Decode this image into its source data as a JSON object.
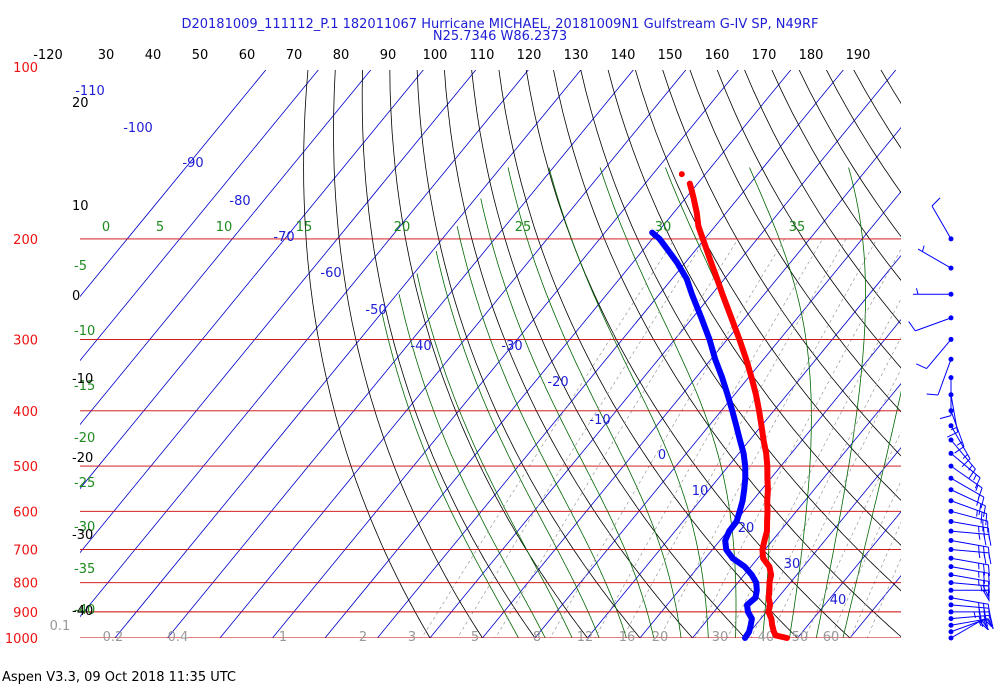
{
  "header": {
    "title": "D20181009_111112_P.1 182011067 Hurricane MICHAEL, 20181009N1 Gulfstream G-IV SP, N49RF",
    "subtitle": "N25.7346 W86.2373"
  },
  "footer": {
    "text": "Aspen V3.3, 09 Oct 2018  11:35 UTC"
  },
  "chart_data": {
    "type": "line",
    "chart_kind": "skew-T log-P sounding",
    "pressure_axis": {
      "scale": "log",
      "range_hPa": [
        100,
        1000
      ],
      "labels": [
        "100",
        "200",
        "300",
        "400",
        "500",
        "600",
        "700",
        "800",
        "900",
        "1000"
      ],
      "color": "#e00000"
    },
    "top_axis": {
      "labels": [
        "-120",
        "30",
        "40",
        "50",
        "60",
        "70",
        "80",
        "90",
        "100",
        "110",
        "120",
        "130",
        "140",
        "150",
        "160",
        "170",
        "180",
        "190"
      ]
    },
    "isotherm_labels": [
      {
        "label": "-110",
        "t": -110
      },
      {
        "label": "-100",
        "t": -100
      },
      {
        "label": "-90",
        "t": -90
      },
      {
        "label": "-80",
        "t": -80
      },
      {
        "label": "-70",
        "t": -70
      },
      {
        "label": "-60",
        "t": -60
      },
      {
        "label": "-50",
        "t": -50
      },
      {
        "label": "-40",
        "t": -40
      },
      {
        "label": "-30",
        "t": -30
      },
      {
        "label": "-20",
        "t": -20
      },
      {
        "label": "-10",
        "t": -10
      },
      {
        "label": "0",
        "t": 0
      },
      {
        "label": "10",
        "t": 10
      },
      {
        "label": "20",
        "t": 20
      },
      {
        "label": "30",
        "t": 30
      },
      {
        "label": "40",
        "t": 40
      }
    ],
    "theta_e_labels": [
      "0",
      "5",
      "10",
      "15",
      "20",
      "25",
      "30",
      "35"
    ],
    "left_green_labels": [
      "-5",
      "-10",
      "-15",
      "-20",
      "-25",
      "-30",
      "-35",
      "-40"
    ],
    "left_black_labels": [
      "20",
      "10",
      "0",
      "-10",
      "-20",
      "-30",
      "-40"
    ],
    "mixing_ratio_labels": [
      "0.1",
      "0.2",
      "0.4",
      "1",
      "2",
      "3",
      "5",
      "8",
      "12",
      "16",
      "20",
      "30",
      "40",
      "50",
      "60"
    ],
    "series": [
      {
        "name": "temperature",
        "color": "#ff0000",
        "points": [
          {
            "p": 1000,
            "t": 28.0
          },
          {
            "p": 990,
            "t": 25.5
          },
          {
            "p": 975,
            "t": 24.5
          },
          {
            "p": 950,
            "t": 23.2
          },
          {
            "p": 925,
            "t": 22.0
          },
          {
            "p": 900,
            "t": 20.4
          },
          {
            "p": 875,
            "t": 19.6
          },
          {
            "p": 850,
            "t": 18.2
          },
          {
            "p": 825,
            "t": 17.2
          },
          {
            "p": 800,
            "t": 16.0
          },
          {
            "p": 775,
            "t": 15.1
          },
          {
            "p": 750,
            "t": 13.5
          },
          {
            "p": 725,
            "t": 11.0
          },
          {
            "p": 700,
            "t": 9.5
          },
          {
            "p": 675,
            "t": 8.5
          },
          {
            "p": 650,
            "t": 7.5
          },
          {
            "p": 625,
            "t": 6.0
          },
          {
            "p": 600,
            "t": 4.5
          },
          {
            "p": 575,
            "t": 2.8
          },
          {
            "p": 550,
            "t": 1.2
          },
          {
            "p": 525,
            "t": -0.7
          },
          {
            "p": 500,
            "t": -2.6
          },
          {
            "p": 475,
            "t": -4.8
          },
          {
            "p": 450,
            "t": -7.4
          },
          {
            "p": 425,
            "t": -10.0
          },
          {
            "p": 400,
            "t": -12.8
          },
          {
            "p": 375,
            "t": -15.9
          },
          {
            "p": 350,
            "t": -19.4
          },
          {
            "p": 325,
            "t": -23.3
          },
          {
            "p": 300,
            "t": -27.7
          },
          {
            "p": 275,
            "t": -32.6
          },
          {
            "p": 250,
            "t": -38.0
          },
          {
            "p": 235,
            "t": -41.4
          },
          {
            "p": 220,
            "t": -45.1
          },
          {
            "p": 205,
            "t": -49.0
          },
          {
            "p": 190,
            "t": -53.2
          },
          {
            "p": 180,
            "t": -55.6
          },
          {
            "p": 170,
            "t": -58.4
          },
          {
            "p": 165,
            "t": -59.9
          },
          {
            "p": 160,
            "t": -61.5
          }
        ],
        "extra_point": {
          "p": 154,
          "t": -64.5
        }
      },
      {
        "name": "dewpoint",
        "color": "#0000ff",
        "points": [
          {
            "p": 1000,
            "t": 20.0
          },
          {
            "p": 975,
            "t": 19.8
          },
          {
            "p": 950,
            "t": 19.1
          },
          {
            "p": 925,
            "t": 18.3
          },
          {
            "p": 900,
            "t": 16.5
          },
          {
            "p": 875,
            "t": 15.2
          },
          {
            "p": 850,
            "t": 15.7
          },
          {
            "p": 825,
            "t": 14.8
          },
          {
            "p": 800,
            "t": 13.5
          },
          {
            "p": 775,
            "t": 11.4
          },
          {
            "p": 750,
            "t": 8.8
          },
          {
            "p": 725,
            "t": 5.2
          },
          {
            "p": 700,
            "t": 2.6
          },
          {
            "p": 675,
            "t": 1.0
          },
          {
            "p": 650,
            "t": 0.3
          },
          {
            "p": 625,
            "t": 0.2
          },
          {
            "p": 600,
            "t": -0.8
          },
          {
            "p": 575,
            "t": -1.9
          },
          {
            "p": 550,
            "t": -3.3
          },
          {
            "p": 525,
            "t": -4.9
          },
          {
            "p": 500,
            "t": -6.8
          },
          {
            "p": 475,
            "t": -9.1
          },
          {
            "p": 450,
            "t": -11.9
          },
          {
            "p": 425,
            "t": -14.8
          },
          {
            "p": 400,
            "t": -17.9
          },
          {
            "p": 375,
            "t": -21.3
          },
          {
            "p": 350,
            "t": -25.0
          },
          {
            "p": 325,
            "t": -29.2
          },
          {
            "p": 300,
            "t": -33.4
          },
          {
            "p": 275,
            "t": -38.3
          },
          {
            "p": 250,
            "t": -43.8
          },
          {
            "p": 235,
            "t": -47.2
          },
          {
            "p": 220,
            "t": -51.6
          },
          {
            "p": 210,
            "t": -55.0
          },
          {
            "p": 200,
            "t": -58.6
          },
          {
            "p": 195,
            "t": -61.0
          }
        ]
      }
    ],
    "wind_barbs": {
      "color": "#0000ff",
      "levels": [
        {
          "p": 1000,
          "dir": 60,
          "kt": 20
        },
        {
          "p": 975,
          "dir": 70,
          "kt": 22
        },
        {
          "p": 950,
          "dir": 80,
          "kt": 25
        },
        {
          "p": 925,
          "dir": 85,
          "kt": 30
        },
        {
          "p": 900,
          "dir": 90,
          "kt": 35
        },
        {
          "p": 875,
          "dir": 95,
          "kt": 30
        },
        {
          "p": 850,
          "dir": 100,
          "kt": 30
        },
        {
          "p": 825,
          "dir": 90,
          "kt": 50
        },
        {
          "p": 800,
          "dir": 95,
          "kt": 55
        },
        {
          "p": 775,
          "dir": 100,
          "kt": 25
        },
        {
          "p": 750,
          "dir": 100,
          "kt": 25
        },
        {
          "p": 725,
          "dir": 100,
          "kt": 25
        },
        {
          "p": 700,
          "dir": 95,
          "kt": 25
        },
        {
          "p": 675,
          "dir": 100,
          "kt": 25
        },
        {
          "p": 650,
          "dir": 95,
          "kt": 25
        },
        {
          "p": 625,
          "dir": 100,
          "kt": 25
        },
        {
          "p": 600,
          "dir": 105,
          "kt": 20
        },
        {
          "p": 575,
          "dir": 110,
          "kt": 25
        },
        {
          "p": 550,
          "dir": 115,
          "kt": 20
        },
        {
          "p": 525,
          "dir": 120,
          "kt": 20
        },
        {
          "p": 500,
          "dir": 125,
          "kt": 15
        },
        {
          "p": 475,
          "dir": 130,
          "kt": 15
        },
        {
          "p": 450,
          "dir": 140,
          "kt": 15
        },
        {
          "p": 425,
          "dir": 150,
          "kt": 15
        },
        {
          "p": 400,
          "dir": 160,
          "kt": 15
        },
        {
          "p": 375,
          "dir": 170,
          "kt": 15
        },
        {
          "p": 350,
          "dir": 180,
          "kt": 10
        },
        {
          "p": 325,
          "dir": 200,
          "kt": 10
        },
        {
          "p": 300,
          "dir": 220,
          "kt": 10
        },
        {
          "p": 275,
          "dir": 250,
          "kt": 10
        },
        {
          "p": 250,
          "dir": 270,
          "kt": 5
        },
        {
          "p": 225,
          "dir": 300,
          "kt": 5
        },
        {
          "p": 200,
          "dir": 330,
          "kt": 10
        }
      ]
    },
    "colors": {
      "isotherm": "#0000cc",
      "isobar": "#cc0000",
      "dry_adiabat": "#000000",
      "moist_adiabat": "#006600",
      "mixing_ratio": "#999999",
      "label_blue": "#1d1dd6",
      "label_red": "#ee1111",
      "label_green": "#1f8a1f",
      "label_gray": "#999999"
    }
  }
}
